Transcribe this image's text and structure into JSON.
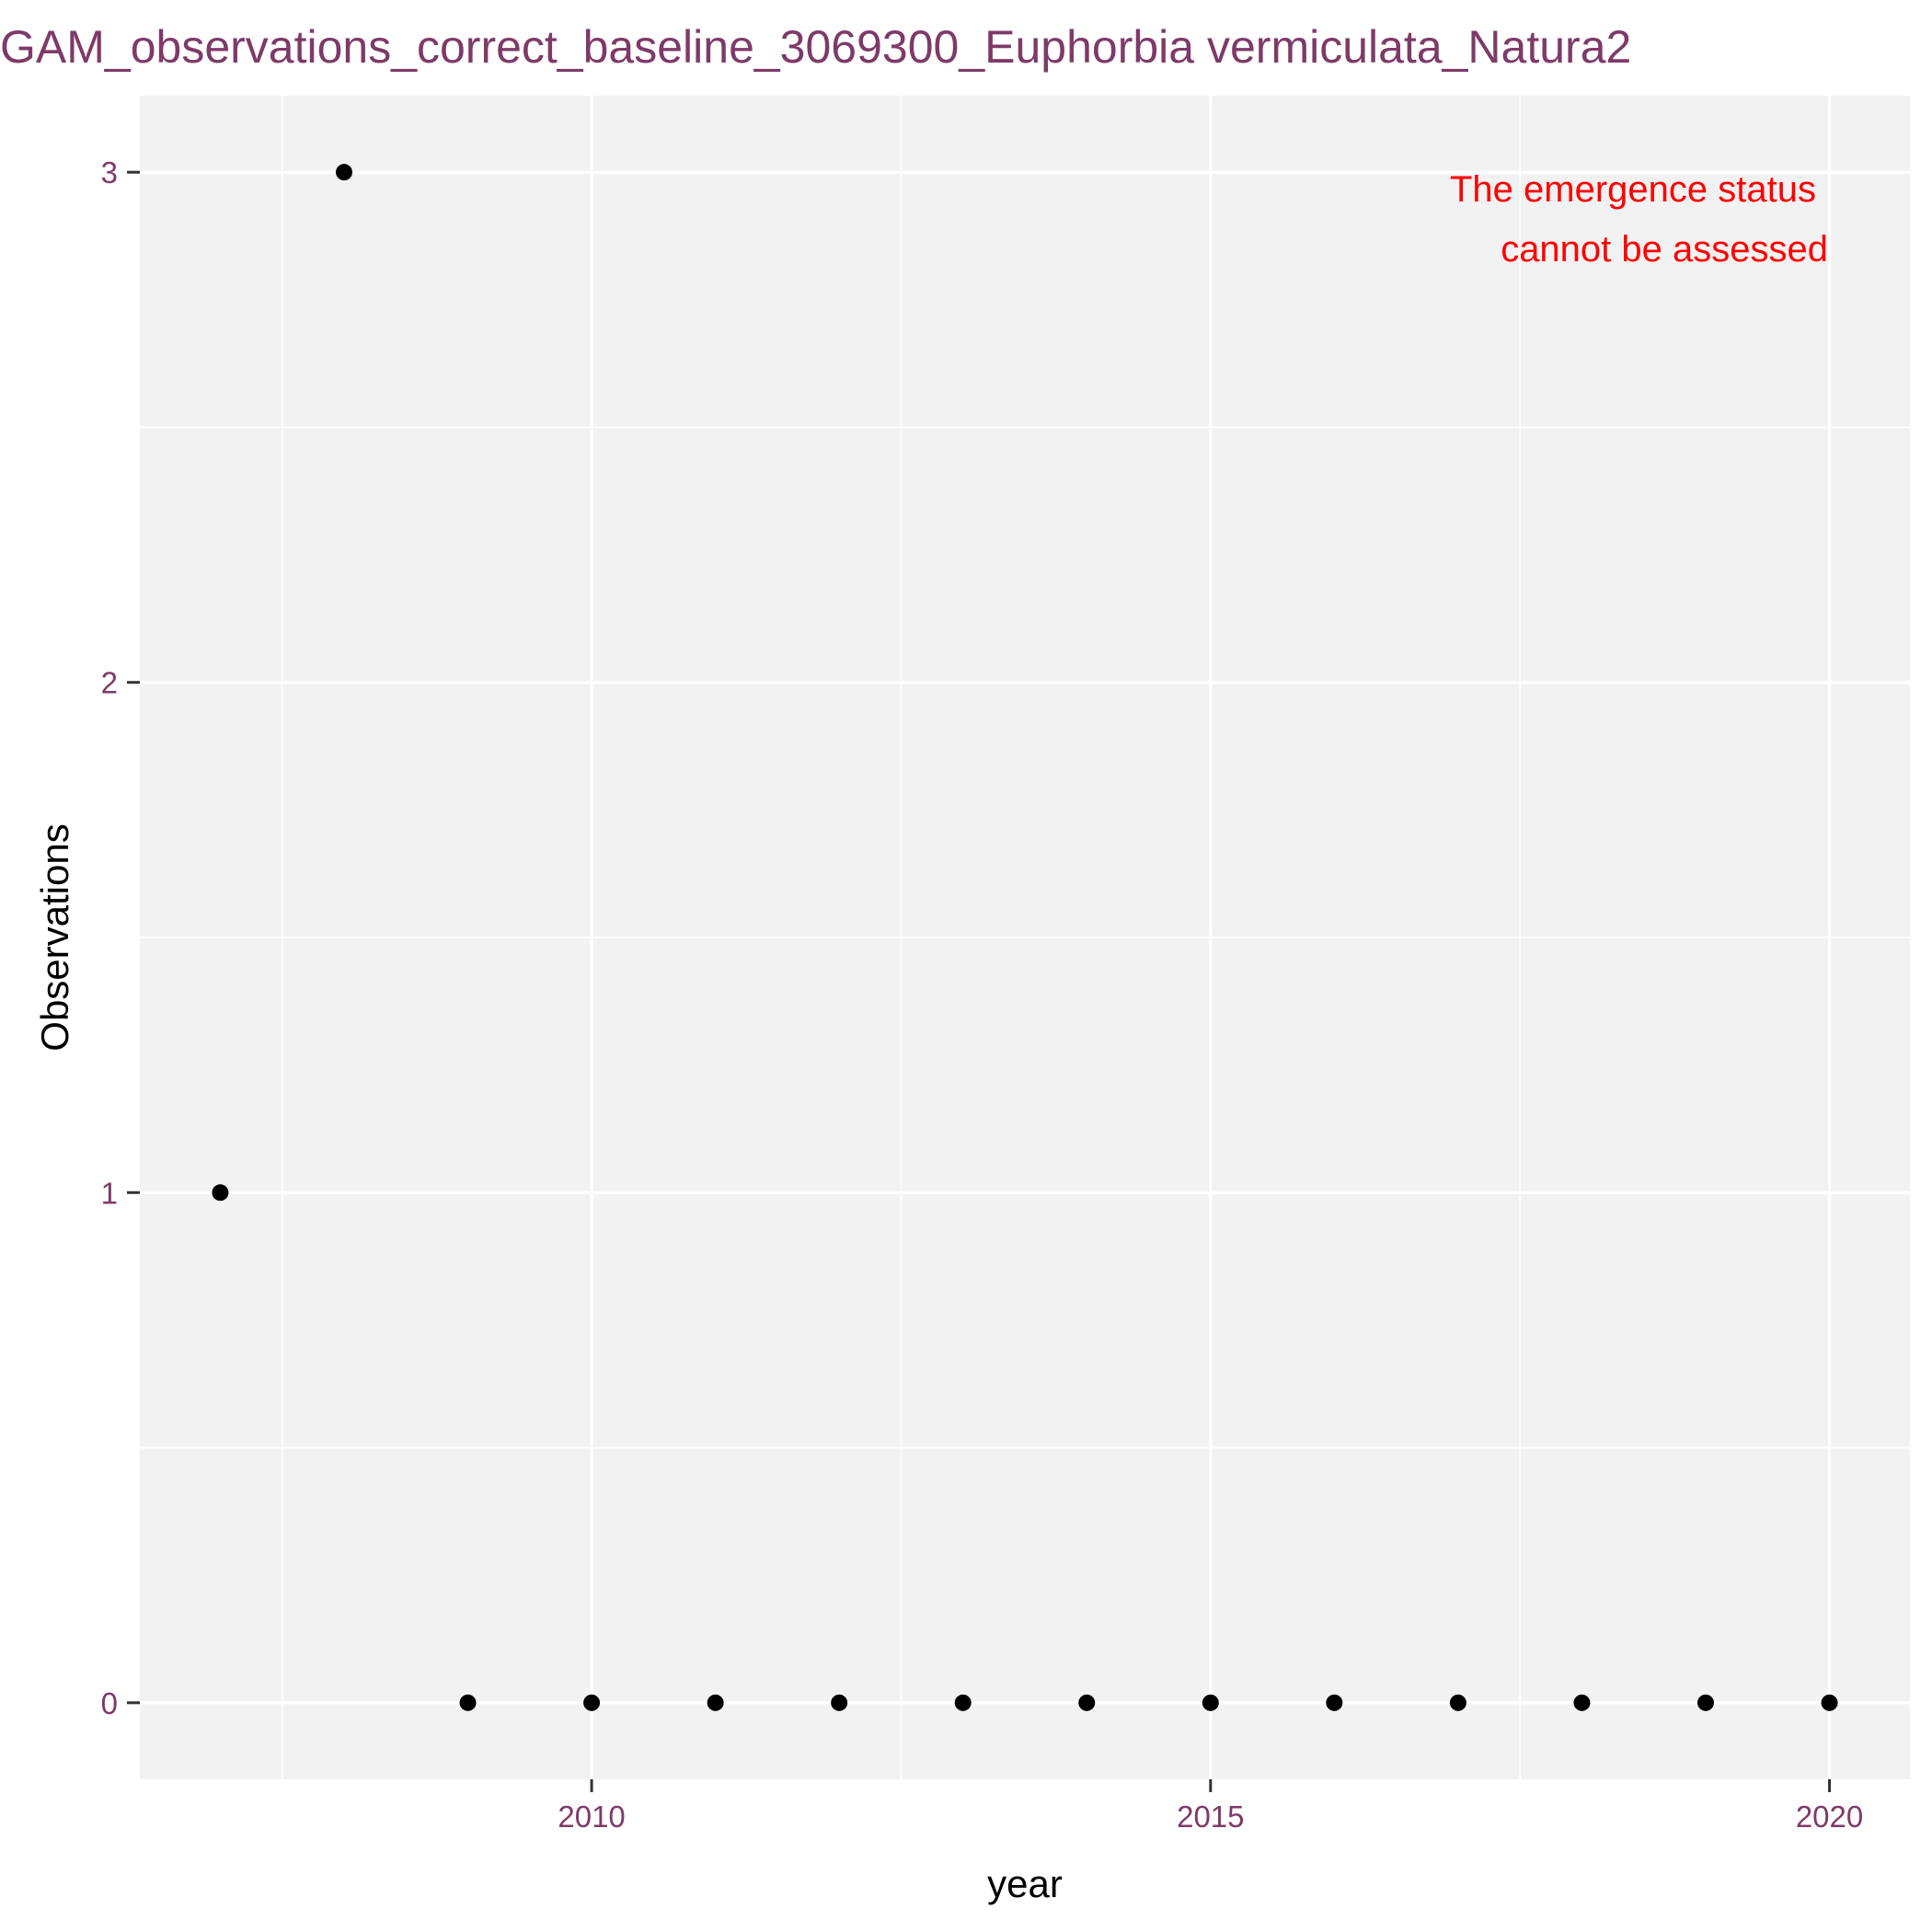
{
  "chart_data": {
    "type": "scatter",
    "title": "GAM_observations_correct_baseline_3069300_Euphorbia vermiculata_Natura2",
    "xlabel": "year",
    "ylabel": "Observations",
    "x_ticks": [
      2010,
      2015,
      2020
    ],
    "y_ticks": [
      0,
      1,
      2,
      3
    ],
    "xlim": [
      2006.35,
      2020.65
    ],
    "ylim": [
      -0.15,
      3.15
    ],
    "grid": true,
    "annotation": {
      "lines": [
        "The emergence status",
        "cannot be assessed"
      ],
      "position": "top-right",
      "color": "#ff0000"
    },
    "points": [
      {
        "x": 2007,
        "y": 1
      },
      {
        "x": 2008,
        "y": 3
      },
      {
        "x": 2009,
        "y": 0
      },
      {
        "x": 2010,
        "y": 0
      },
      {
        "x": 2011,
        "y": 0
      },
      {
        "x": 2012,
        "y": 0
      },
      {
        "x": 2013,
        "y": 0
      },
      {
        "x": 2014,
        "y": 0
      },
      {
        "x": 2015,
        "y": 0
      },
      {
        "x": 2016,
        "y": 0
      },
      {
        "x": 2017,
        "y": 0
      },
      {
        "x": 2018,
        "y": 0
      },
      {
        "x": 2019,
        "y": 0
      },
      {
        "x": 2020,
        "y": 0
      }
    ],
    "colors": {
      "panel_background": "#f2f2f2",
      "grid": "#ffffff",
      "point": "#000000",
      "title": "#7e3a68",
      "tick_label": "#7e3a68",
      "axis_label": "#000000",
      "annotation": "#ff0000"
    }
  }
}
